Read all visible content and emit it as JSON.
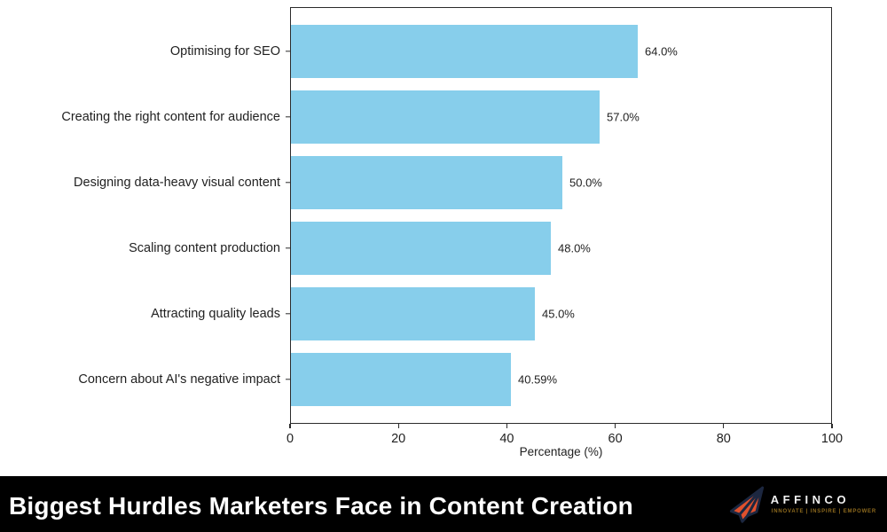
{
  "chart_data": {
    "type": "bar",
    "orientation": "horizontal",
    "categories": [
      "Optimising for SEO",
      "Creating the right content for audience",
      "Designing data-heavy visual content",
      "Scaling content production",
      "Attracting quality leads",
      "Concern about AI's negative impact"
    ],
    "values": [
      64.0,
      57.0,
      50.0,
      48.0,
      45.0,
      40.59
    ],
    "value_labels": [
      "64.0%",
      "57.0%",
      "50.0%",
      "48.0%",
      "45.0%",
      "40.59%"
    ],
    "xlabel": "Percentage (%)",
    "xlim": [
      0,
      100
    ],
    "x_ticks": [
      0,
      20,
      40,
      60,
      80,
      100
    ],
    "grid": false,
    "legend": "none",
    "bar_color": "#87CEEB",
    "axis_color": "#2b2b2b",
    "text_color": "#1f1f1f"
  },
  "banner": {
    "title": "Biggest Hurdles Marketers Face in Content Creation",
    "background_color": "#000000",
    "title_color": "#ffffff",
    "logo": {
      "name": "AFFINCO",
      "tagline": "INNOVATE | INSPIRE | EMPOWER",
      "icon": "paper-plane-icon",
      "plane_fill": "#E0512D",
      "plane_outline": "#1C2740",
      "name_color": "#F2F2F2",
      "tagline_color": "#8F6B1E"
    }
  }
}
